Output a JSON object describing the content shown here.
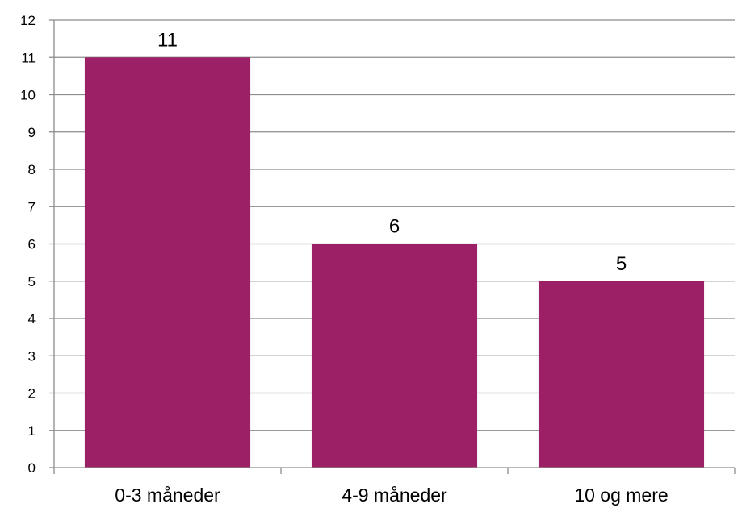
{
  "chart_data": {
    "type": "bar",
    "categories": [
      "0-3 måneder",
      "4-9 måneder",
      "10 og mere"
    ],
    "values": [
      11,
      6,
      5
    ],
    "data_labels": [
      "11",
      "6",
      "5"
    ],
    "title": "",
    "xlabel": "",
    "ylabel": "",
    "ylim": [
      0,
      12
    ],
    "yticks": [
      "0",
      "1",
      "2",
      "3",
      "4",
      "5",
      "6",
      "7",
      "8",
      "9",
      "10",
      "11",
      "12"
    ],
    "grid": true,
    "legend": "none",
    "colors": {
      "bar": "#9B2066",
      "grid": "#8C8C8C",
      "axis": "#8C8C8C"
    }
  }
}
